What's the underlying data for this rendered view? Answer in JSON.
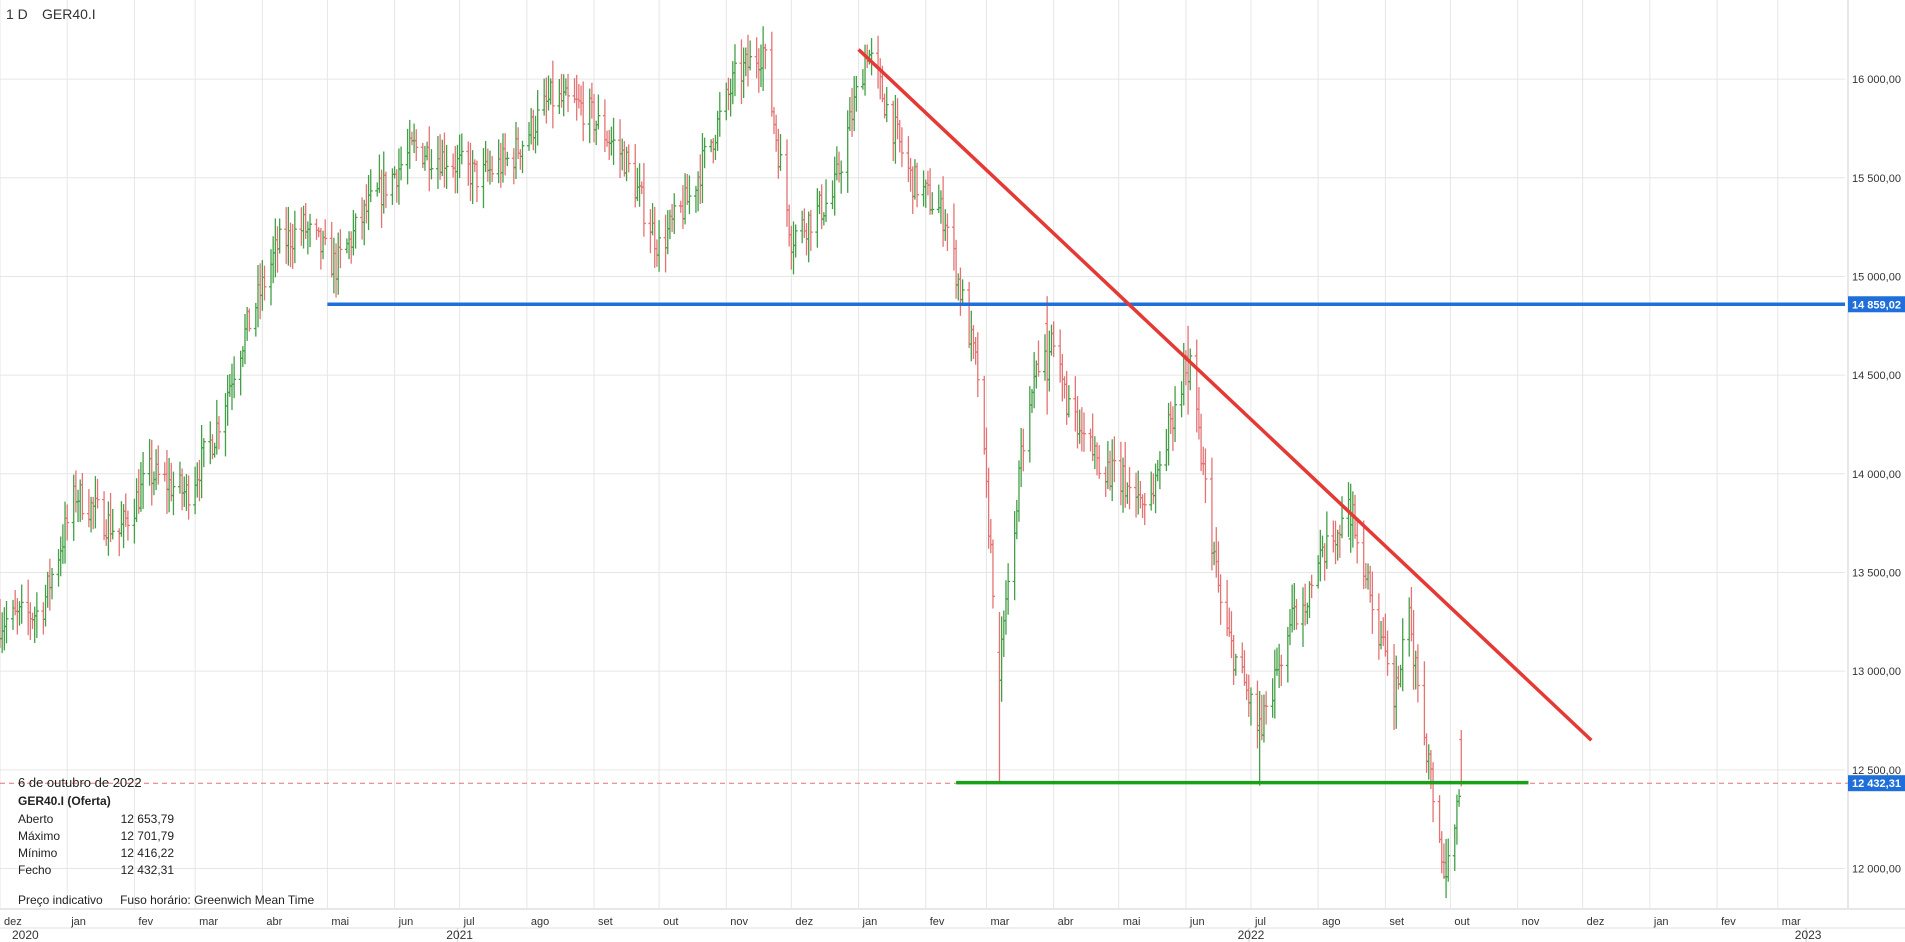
{
  "header": {
    "timeframe": "1 D",
    "symbol": "GER40.I"
  },
  "info_panel": {
    "date": "6 de outubro de 2022",
    "symbol_line": "GER40.I (Oferta)",
    "rows": [
      {
        "label": "Aberto",
        "value": "12 653,79"
      },
      {
        "label": "Máximo",
        "value": "12 701,79"
      },
      {
        "label": "Mínimo",
        "value": "12 416,22"
      },
      {
        "label": "Fecho",
        "value": "12 432,31"
      }
    ]
  },
  "footer": {
    "price_note": "Preço indicativo",
    "timezone": "Fuso horário: Greenwich Mean Time"
  },
  "colors": {
    "up": "#43a047",
    "down": "#e57373",
    "blue_line": "#1e6fd9",
    "red_line": "#e53935",
    "green_line": "#18a018",
    "current": "#1e6fd9"
  },
  "chart_data": {
    "type": "ohlc",
    "ylim": [
      11800,
      16350
    ],
    "y_ticks": [
      {
        "value": 12000,
        "label": "12 000,00"
      },
      {
        "value": 12500,
        "label": "12 500,00"
      },
      {
        "value": 13000,
        "label": "13 000,00"
      },
      {
        "value": 13500,
        "label": "13 500,00"
      },
      {
        "value": 14000,
        "label": "14 000,00"
      },
      {
        "value": 14500,
        "label": "14 500,00"
      },
      {
        "value": 15000,
        "label": "15 000,00"
      },
      {
        "value": 15500,
        "label": "15 500,00"
      },
      {
        "value": 16000,
        "label": "16 000,00"
      }
    ],
    "x_start": "2020-12-01",
    "x_end": "2023-04-01",
    "month_ticks": [
      {
        "date": "2020-12-01",
        "label": "dez"
      },
      {
        "date": "2021-01-01",
        "label": "jan"
      },
      {
        "date": "2021-02-01",
        "label": "fev"
      },
      {
        "date": "2021-03-01",
        "label": "mar"
      },
      {
        "date": "2021-04-01",
        "label": "abr"
      },
      {
        "date": "2021-05-01",
        "label": "mai"
      },
      {
        "date": "2021-06-01",
        "label": "jun"
      },
      {
        "date": "2021-07-01",
        "label": "jul"
      },
      {
        "date": "2021-08-01",
        "label": "ago"
      },
      {
        "date": "2021-09-01",
        "label": "set"
      },
      {
        "date": "2021-10-01",
        "label": "out"
      },
      {
        "date": "2021-11-01",
        "label": "nov"
      },
      {
        "date": "2021-12-01",
        "label": "dez"
      },
      {
        "date": "2022-01-01",
        "label": "jan"
      },
      {
        "date": "2022-02-01",
        "label": "fev"
      },
      {
        "date": "2022-03-01",
        "label": "mar"
      },
      {
        "date": "2022-04-01",
        "label": "abr"
      },
      {
        "date": "2022-05-01",
        "label": "mai"
      },
      {
        "date": "2022-06-01",
        "label": "jun"
      },
      {
        "date": "2022-07-01",
        "label": "jul"
      },
      {
        "date": "2022-08-01",
        "label": "ago"
      },
      {
        "date": "2022-09-01",
        "label": "set"
      },
      {
        "date": "2022-10-01",
        "label": "out"
      },
      {
        "date": "2022-11-01",
        "label": "nov"
      },
      {
        "date": "2022-12-01",
        "label": "dez"
      },
      {
        "date": "2023-01-01",
        "label": "jan"
      },
      {
        "date": "2023-02-01",
        "label": "fev"
      },
      {
        "date": "2023-03-01",
        "label": "mar"
      }
    ],
    "year_ticks": [
      {
        "date": "2020-12-01",
        "label": "2020"
      },
      {
        "date": "2021-07-01",
        "label": "2021"
      },
      {
        "date": "2022-07-01",
        "label": "2022"
      },
      {
        "date": "2023-03-15",
        "label": "2023"
      }
    ],
    "price_path": [
      [
        "2020-12-01",
        13250
      ],
      [
        "2020-12-20",
        13300
      ],
      [
        "2021-01-05",
        13900
      ],
      [
        "2021-01-25",
        13700
      ],
      [
        "2021-02-08",
        14000
      ],
      [
        "2021-02-25",
        13900
      ],
      [
        "2021-03-10",
        14200
      ],
      [
        "2021-03-22",
        14650
      ],
      [
        "2021-04-08",
        15150
      ],
      [
        "2021-04-20",
        15250
      ],
      [
        "2021-05-05",
        15050
      ],
      [
        "2021-05-20",
        15350
      ],
      [
        "2021-06-10",
        15650
      ],
      [
        "2021-06-25",
        15600
      ],
      [
        "2021-07-10",
        15500
      ],
      [
        "2021-07-25",
        15600
      ],
      [
        "2021-08-12",
        15900
      ],
      [
        "2021-08-28",
        15850
      ],
      [
        "2021-09-15",
        15600
      ],
      [
        "2021-10-01",
        15150
      ],
      [
        "2021-10-15",
        15400
      ],
      [
        "2021-11-05",
        16000
      ],
      [
        "2021-11-18",
        16150
      ],
      [
        "2021-12-01",
        15200
      ],
      [
        "2021-12-20",
        15400
      ],
      [
        "2022-01-05",
        16150
      ],
      [
        "2022-01-25",
        15500
      ],
      [
        "2022-02-10",
        15300
      ],
      [
        "2022-02-25",
        14500
      ],
      [
        "2022-03-07",
        13000
      ],
      [
        "2022-03-20",
        14400
      ],
      [
        "2022-03-29",
        14700
      ],
      [
        "2022-04-12",
        14200
      ],
      [
        "2022-04-28",
        14000
      ],
      [
        "2022-05-15",
        13850
      ],
      [
        "2022-05-28",
        14400
      ],
      [
        "2022-06-02",
        14600
      ],
      [
        "2022-06-18",
        13250
      ],
      [
        "2022-07-05",
        12700
      ],
      [
        "2022-07-20",
        13250
      ],
      [
        "2022-08-05",
        13600
      ],
      [
        "2022-08-16",
        13850
      ],
      [
        "2022-09-05",
        12850
      ],
      [
        "2022-09-12",
        13250
      ],
      [
        "2022-09-28",
        12000
      ],
      [
        "2022-10-06",
        12432
      ]
    ],
    "pinned_bars": [
      {
        "date": "2022-03-07",
        "high": 13300,
        "low": 12440
      },
      {
        "date": "2022-03-29",
        "high": 14900,
        "low": 14300
      },
      {
        "date": "2022-06-02",
        "high": 14750,
        "low": 14300
      },
      {
        "date": "2022-07-05",
        "high": 12900,
        "low": 12420
      },
      {
        "date": "2022-08-16",
        "high": 13950,
        "low": 13600
      },
      {
        "date": "2022-09-29",
        "high": 12150,
        "low": 11850
      },
      {
        "date": "2022-10-06",
        "open": 12653.79,
        "high": 12701.79,
        "low": 12416.22,
        "close": 12432.31
      }
    ],
    "trendlines": [
      {
        "name": "resistance",
        "color": "#1e6fd9",
        "from": [
          "2021-05-01",
          14859.02
        ],
        "to": [
          "2023-04-01",
          14859.02
        ],
        "label": "14 859,02"
      },
      {
        "name": "downtrend",
        "color": "#e53935",
        "from": [
          "2022-01-01",
          16150
        ],
        "to": [
          "2022-12-05",
          12650
        ]
      },
      {
        "name": "support",
        "color": "#18a018",
        "from": [
          "2022-02-15",
          12435
        ],
        "to": [
          "2022-11-06",
          12435
        ]
      }
    ],
    "current_price": {
      "value": 12432.31,
      "label": "12 432,31"
    }
  }
}
